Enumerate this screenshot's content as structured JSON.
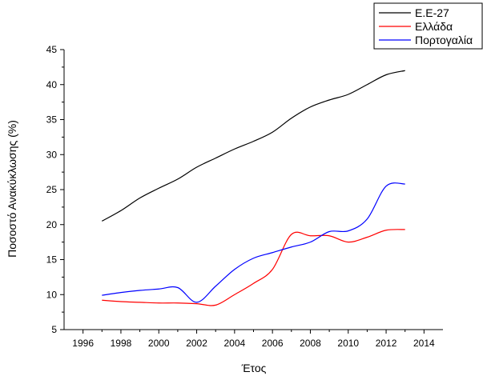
{
  "chart_data": {
    "type": "line",
    "title": "",
    "xlabel": "Έτος",
    "ylabel": "Ποσοστό Ανακύκλωσης (%)",
    "xlim": [
      1995,
      2015
    ],
    "ylim": [
      5,
      45
    ],
    "x_ticks": [
      "1996",
      "1998",
      "2000",
      "2002",
      "2004",
      "2006",
      "2008",
      "2010",
      "2012",
      "2014"
    ],
    "y_ticks": [
      "5",
      "10",
      "15",
      "20",
      "25",
      "30",
      "35",
      "40",
      "45"
    ],
    "grid": false,
    "legend_position": "top-right",
    "series": [
      {
        "name": "Ε.Ε-27",
        "color": "#000000",
        "x": [
          1997,
          1998,
          1999,
          2000,
          2001,
          2002,
          2003,
          2004,
          2005,
          2006,
          2007,
          2008,
          2009,
          2010,
          2011,
          2012,
          2013
        ],
        "y": [
          20.5,
          22.0,
          23.8,
          25.2,
          26.5,
          28.2,
          29.5,
          30.8,
          31.9,
          33.2,
          35.2,
          36.8,
          37.8,
          38.6,
          40.0,
          41.4,
          42.0
        ]
      },
      {
        "name": "Ελλάδα",
        "color": "#ff0000",
        "x": [
          1997,
          1998,
          1999,
          2000,
          2001,
          2002,
          2003,
          2004,
          2005,
          2006,
          2007,
          2008,
          2009,
          2010,
          2011,
          2012,
          2013
        ],
        "y": [
          9.2,
          9.0,
          8.9,
          8.8,
          8.8,
          8.7,
          8.5,
          10.0,
          11.6,
          13.6,
          18.6,
          18.4,
          18.4,
          17.5,
          18.2,
          19.2,
          19.3
        ]
      },
      {
        "name": "Πορτογαλία",
        "color": "#0000ff",
        "x": [
          1997,
          1998,
          1999,
          2000,
          2001,
          2002,
          2003,
          2004,
          2005,
          2006,
          2007,
          2008,
          2009,
          2010,
          2011,
          2012,
          2013
        ],
        "y": [
          9.9,
          10.3,
          10.6,
          10.8,
          11.0,
          8.9,
          11.2,
          13.6,
          15.2,
          16.0,
          16.8,
          17.5,
          19.0,
          19.1,
          20.8,
          25.5,
          25.8
        ]
      }
    ]
  }
}
